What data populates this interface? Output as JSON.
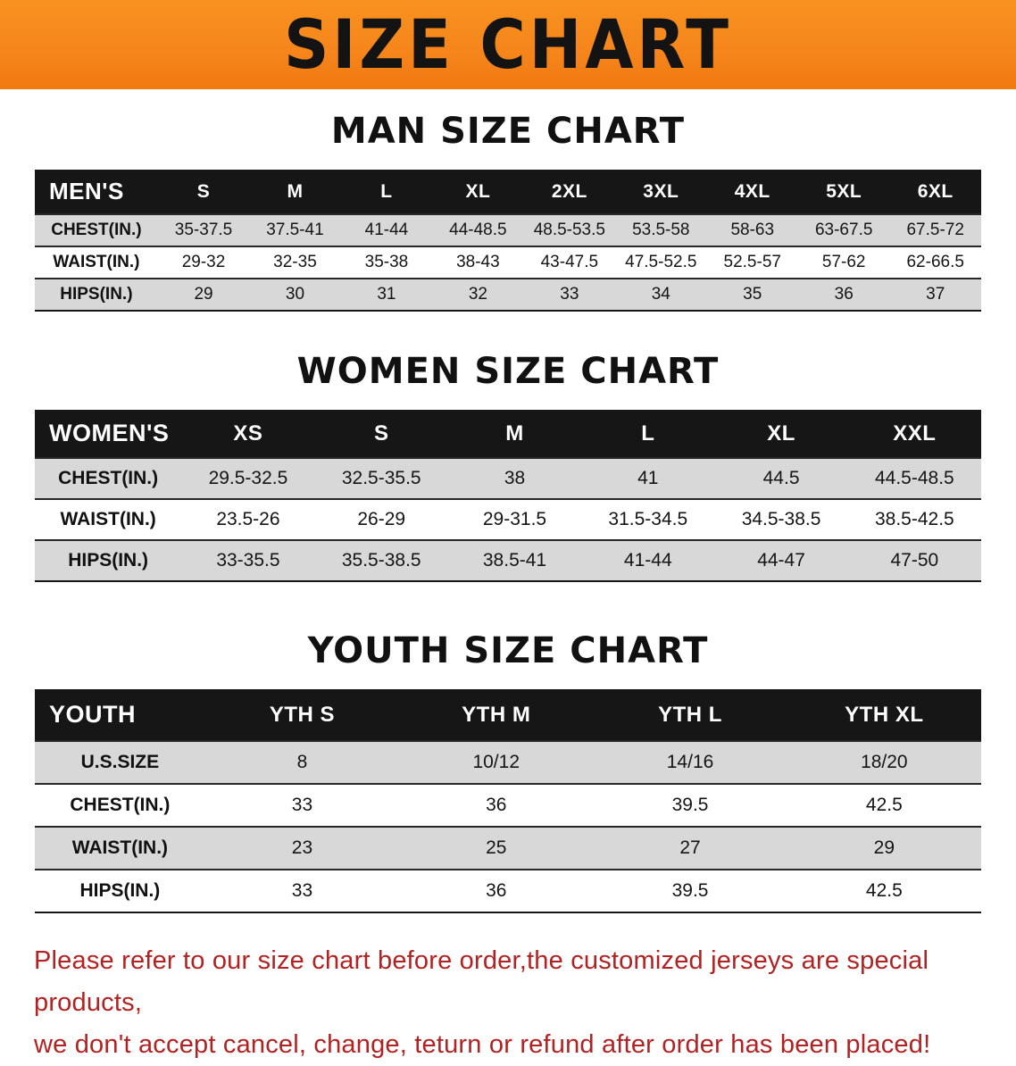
{
  "banner": {
    "title": "SIZE CHART",
    "bg_color": "#F6861C",
    "text_color": "#131313"
  },
  "colors": {
    "header_row_bg": "#161616",
    "shaded_row_bg": "#D8D8D8",
    "footer_text": "#B22222"
  },
  "chart_data": [
    {
      "type": "table",
      "title": "MAN SIZE CHART",
      "corner_label": "MEN'S",
      "columns": [
        "S",
        "M",
        "L",
        "XL",
        "2XL",
        "3XL",
        "4XL",
        "5XL",
        "6XL"
      ],
      "rows": [
        {
          "label": "CHEST(IN.)",
          "values": [
            "35-37.5",
            "37.5-41",
            "41-44",
            "44-48.5",
            "48.5-53.5",
            "53.5-58",
            "58-63",
            "63-67.5",
            "67.5-72"
          ]
        },
        {
          "label": "WAIST(IN.)",
          "values": [
            "29-32",
            "32-35",
            "35-38",
            "38-43",
            "43-47.5",
            "47.5-52.5",
            "52.5-57",
            "57-62",
            "62-66.5"
          ]
        },
        {
          "label": "HIPS(IN.)",
          "values": [
            "29",
            "30",
            "31",
            "32",
            "33",
            "34",
            "35",
            "36",
            "37"
          ]
        }
      ]
    },
    {
      "type": "table",
      "title": "WOMEN SIZE CHART",
      "corner_label": "WOMEN'S",
      "columns": [
        "XS",
        "S",
        "M",
        "L",
        "XL",
        "XXL"
      ],
      "rows": [
        {
          "label": "CHEST(IN.)",
          "values": [
            "29.5-32.5",
            "32.5-35.5",
            "38",
            "41",
            "44.5",
            "44.5-48.5"
          ]
        },
        {
          "label": "WAIST(IN.)",
          "values": [
            "23.5-26",
            "26-29",
            "29-31.5",
            "31.5-34.5",
            "34.5-38.5",
            "38.5-42.5"
          ]
        },
        {
          "label": "HIPS(IN.)",
          "values": [
            "33-35.5",
            "35.5-38.5",
            "38.5-41",
            "41-44",
            "44-47",
            "47-50"
          ]
        }
      ]
    },
    {
      "type": "table",
      "title": "YOUTH SIZE CHART",
      "corner_label": "YOUTH",
      "columns": [
        "YTH S",
        "YTH M",
        "YTH L",
        "YTH XL"
      ],
      "rows": [
        {
          "label": "U.S.SIZE",
          "values": [
            "8",
            "10/12",
            "14/16",
            "18/20"
          ]
        },
        {
          "label": "CHEST(IN.)",
          "values": [
            "33",
            "36",
            "39.5",
            "42.5"
          ]
        },
        {
          "label": "WAIST(IN.)",
          "values": [
            "23",
            "25",
            "27",
            "29"
          ]
        },
        {
          "label": "HIPS(IN.)",
          "values": [
            "33",
            "36",
            "39.5",
            "42.5"
          ]
        }
      ]
    }
  ],
  "footer": {
    "lines": [
      "Please refer to our size chart before order,the customized jerseys are special products,",
      "we don't accept cancel, change, teturn or refund after order has been placed!"
    ]
  }
}
